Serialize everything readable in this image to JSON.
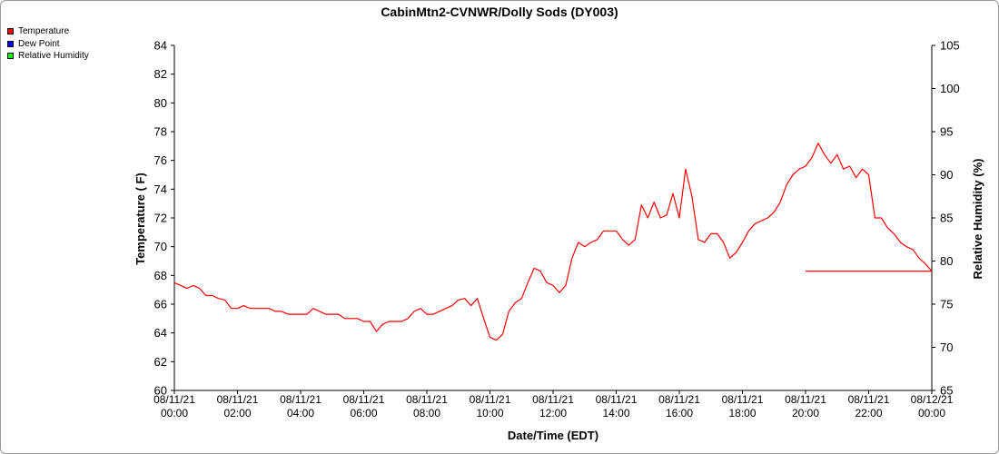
{
  "chart_data": {
    "type": "line",
    "title": "CabinMtn2-CVNWR/Dolly Sods (DY003)",
    "xlabel": "Date/Time (EDT)",
    "ylabel": "Temperature ( F)",
    "y2label": "Relative Humidity (%)",
    "xlim": [
      0,
      24
    ],
    "ylim": [
      60,
      84
    ],
    "y2lim": [
      65,
      105
    ],
    "grid": false,
    "legend_position": "top-left",
    "x_ticks": [
      {
        "value": 0,
        "date": "08/11/21",
        "time": "00:00"
      },
      {
        "value": 2,
        "date": "08/11/21",
        "time": "02:00"
      },
      {
        "value": 4,
        "date": "08/11/21",
        "time": "04:00"
      },
      {
        "value": 6,
        "date": "08/11/21",
        "time": "06:00"
      },
      {
        "value": 8,
        "date": "08/11/21",
        "time": "08:00"
      },
      {
        "value": 10,
        "date": "08/11/21",
        "time": "10:00"
      },
      {
        "value": 12,
        "date": "08/11/21",
        "time": "12:00"
      },
      {
        "value": 14,
        "date": "08/11/21",
        "time": "14:00"
      },
      {
        "value": 16,
        "date": "08/11/21",
        "time": "16:00"
      },
      {
        "value": 18,
        "date": "08/11/21",
        "time": "18:00"
      },
      {
        "value": 20,
        "date": "08/11/21",
        "time": "20:00"
      },
      {
        "value": 22,
        "date": "08/11/21",
        "time": "22:00"
      },
      {
        "value": 24,
        "date": "08/12/21",
        "time": "00:00"
      }
    ],
    "y_ticks": [
      60,
      62,
      64,
      66,
      68,
      70,
      72,
      74,
      76,
      78,
      80,
      82,
      84
    ],
    "y2_ticks": [
      65,
      70,
      75,
      80,
      85,
      90,
      95,
      100,
      105
    ],
    "series": [
      {
        "name": "Temperature",
        "color": "#ff0000",
        "axis": "left",
        "points": [
          [
            0,
            67.5
          ],
          [
            0.2,
            67.3
          ],
          [
            0.4,
            67.1
          ],
          [
            0.6,
            67.3
          ],
          [
            0.8,
            67.1
          ],
          [
            1.0,
            66.6
          ],
          [
            1.2,
            66.6
          ],
          [
            1.4,
            66.4
          ],
          [
            1.6,
            66.3
          ],
          [
            1.8,
            65.7
          ],
          [
            2.0,
            65.7
          ],
          [
            2.2,
            65.9
          ],
          [
            2.4,
            65.7
          ],
          [
            2.6,
            65.7
          ],
          [
            2.8,
            65.7
          ],
          [
            3.0,
            65.7
          ],
          [
            3.2,
            65.5
          ],
          [
            3.4,
            65.5
          ],
          [
            3.6,
            65.3
          ],
          [
            3.8,
            65.3
          ],
          [
            4.0,
            65.3
          ],
          [
            4.2,
            65.3
          ],
          [
            4.4,
            65.7
          ],
          [
            4.6,
            65.5
          ],
          [
            4.8,
            65.3
          ],
          [
            5.0,
            65.3
          ],
          [
            5.2,
            65.3
          ],
          [
            5.4,
            65.0
          ],
          [
            5.6,
            65.0
          ],
          [
            5.8,
            65.0
          ],
          [
            6.0,
            64.8
          ],
          [
            6.2,
            64.8
          ],
          [
            6.4,
            64.1
          ],
          [
            6.6,
            64.6
          ],
          [
            6.8,
            64.8
          ],
          [
            7.0,
            64.8
          ],
          [
            7.2,
            64.8
          ],
          [
            7.4,
            65.0
          ],
          [
            7.6,
            65.5
          ],
          [
            7.8,
            65.7
          ],
          [
            8.0,
            65.3
          ],
          [
            8.2,
            65.3
          ],
          [
            8.4,
            65.5
          ],
          [
            8.6,
            65.7
          ],
          [
            8.8,
            65.9
          ],
          [
            9.0,
            66.3
          ],
          [
            9.2,
            66.4
          ],
          [
            9.4,
            65.9
          ],
          [
            9.6,
            66.4
          ],
          [
            9.8,
            65.0
          ],
          [
            10.0,
            63.7
          ],
          [
            10.2,
            63.5
          ],
          [
            10.4,
            63.9
          ],
          [
            10.6,
            65.5
          ],
          [
            10.8,
            66.1
          ],
          [
            11.0,
            66.4
          ],
          [
            11.2,
            67.5
          ],
          [
            11.4,
            68.5
          ],
          [
            11.6,
            68.3
          ],
          [
            11.8,
            67.5
          ],
          [
            12.0,
            67.3
          ],
          [
            12.2,
            66.8
          ],
          [
            12.4,
            67.3
          ],
          [
            12.6,
            69.2
          ],
          [
            12.8,
            70.3
          ],
          [
            13.0,
            70.0
          ],
          [
            13.2,
            70.3
          ],
          [
            13.4,
            70.5
          ],
          [
            13.6,
            71.1
          ],
          [
            13.8,
            71.1
          ],
          [
            14.0,
            71.1
          ],
          [
            14.2,
            70.5
          ],
          [
            14.4,
            70.1
          ],
          [
            14.6,
            70.5
          ],
          [
            14.8,
            72.9
          ],
          [
            15.0,
            72.0
          ],
          [
            15.2,
            73.1
          ],
          [
            15.4,
            72.0
          ],
          [
            15.6,
            72.2
          ],
          [
            15.8,
            73.7
          ],
          [
            16.0,
            72.0
          ],
          [
            16.2,
            75.4
          ],
          [
            16.4,
            73.5
          ],
          [
            16.6,
            70.5
          ],
          [
            16.8,
            70.3
          ],
          [
            17.0,
            70.9
          ],
          [
            17.2,
            70.9
          ],
          [
            17.4,
            70.3
          ],
          [
            17.6,
            69.2
          ],
          [
            17.8,
            69.6
          ],
          [
            18.0,
            70.3
          ],
          [
            18.2,
            71.1
          ],
          [
            18.4,
            71.6
          ],
          [
            18.6,
            71.8
          ],
          [
            18.8,
            72.0
          ],
          [
            19.0,
            72.4
          ],
          [
            19.2,
            73.1
          ],
          [
            19.4,
            74.3
          ],
          [
            19.6,
            75.0
          ],
          [
            19.8,
            75.4
          ],
          [
            20.0,
            75.6
          ],
          [
            20.2,
            76.2
          ],
          [
            20.4,
            77.2
          ],
          [
            20.6,
            76.4
          ],
          [
            20.8,
            75.8
          ],
          [
            21.0,
            76.4
          ],
          [
            21.2,
            75.4
          ],
          [
            21.4,
            75.6
          ],
          [
            21.6,
            74.8
          ],
          [
            21.8,
            75.4
          ],
          [
            22.0,
            75.0
          ],
          [
            22.2,
            72.0
          ],
          [
            22.4,
            72.0
          ],
          [
            22.6,
            71.3
          ],
          [
            22.8,
            70.9
          ],
          [
            23.0,
            70.3
          ],
          [
            23.2,
            70.0
          ],
          [
            23.4,
            69.8
          ],
          [
            23.6,
            69.2
          ],
          [
            23.8,
            68.8
          ],
          [
            24.0,
            68.3
          ],
          [
            20.0,
            68.3
          ]
        ]
      },
      {
        "name": "Dew Point",
        "color": "#0000ff",
        "axis": "left",
        "points": []
      },
      {
        "name": "Relative Humidity",
        "color": "#00ff00",
        "axis": "right",
        "points": []
      }
    ]
  }
}
